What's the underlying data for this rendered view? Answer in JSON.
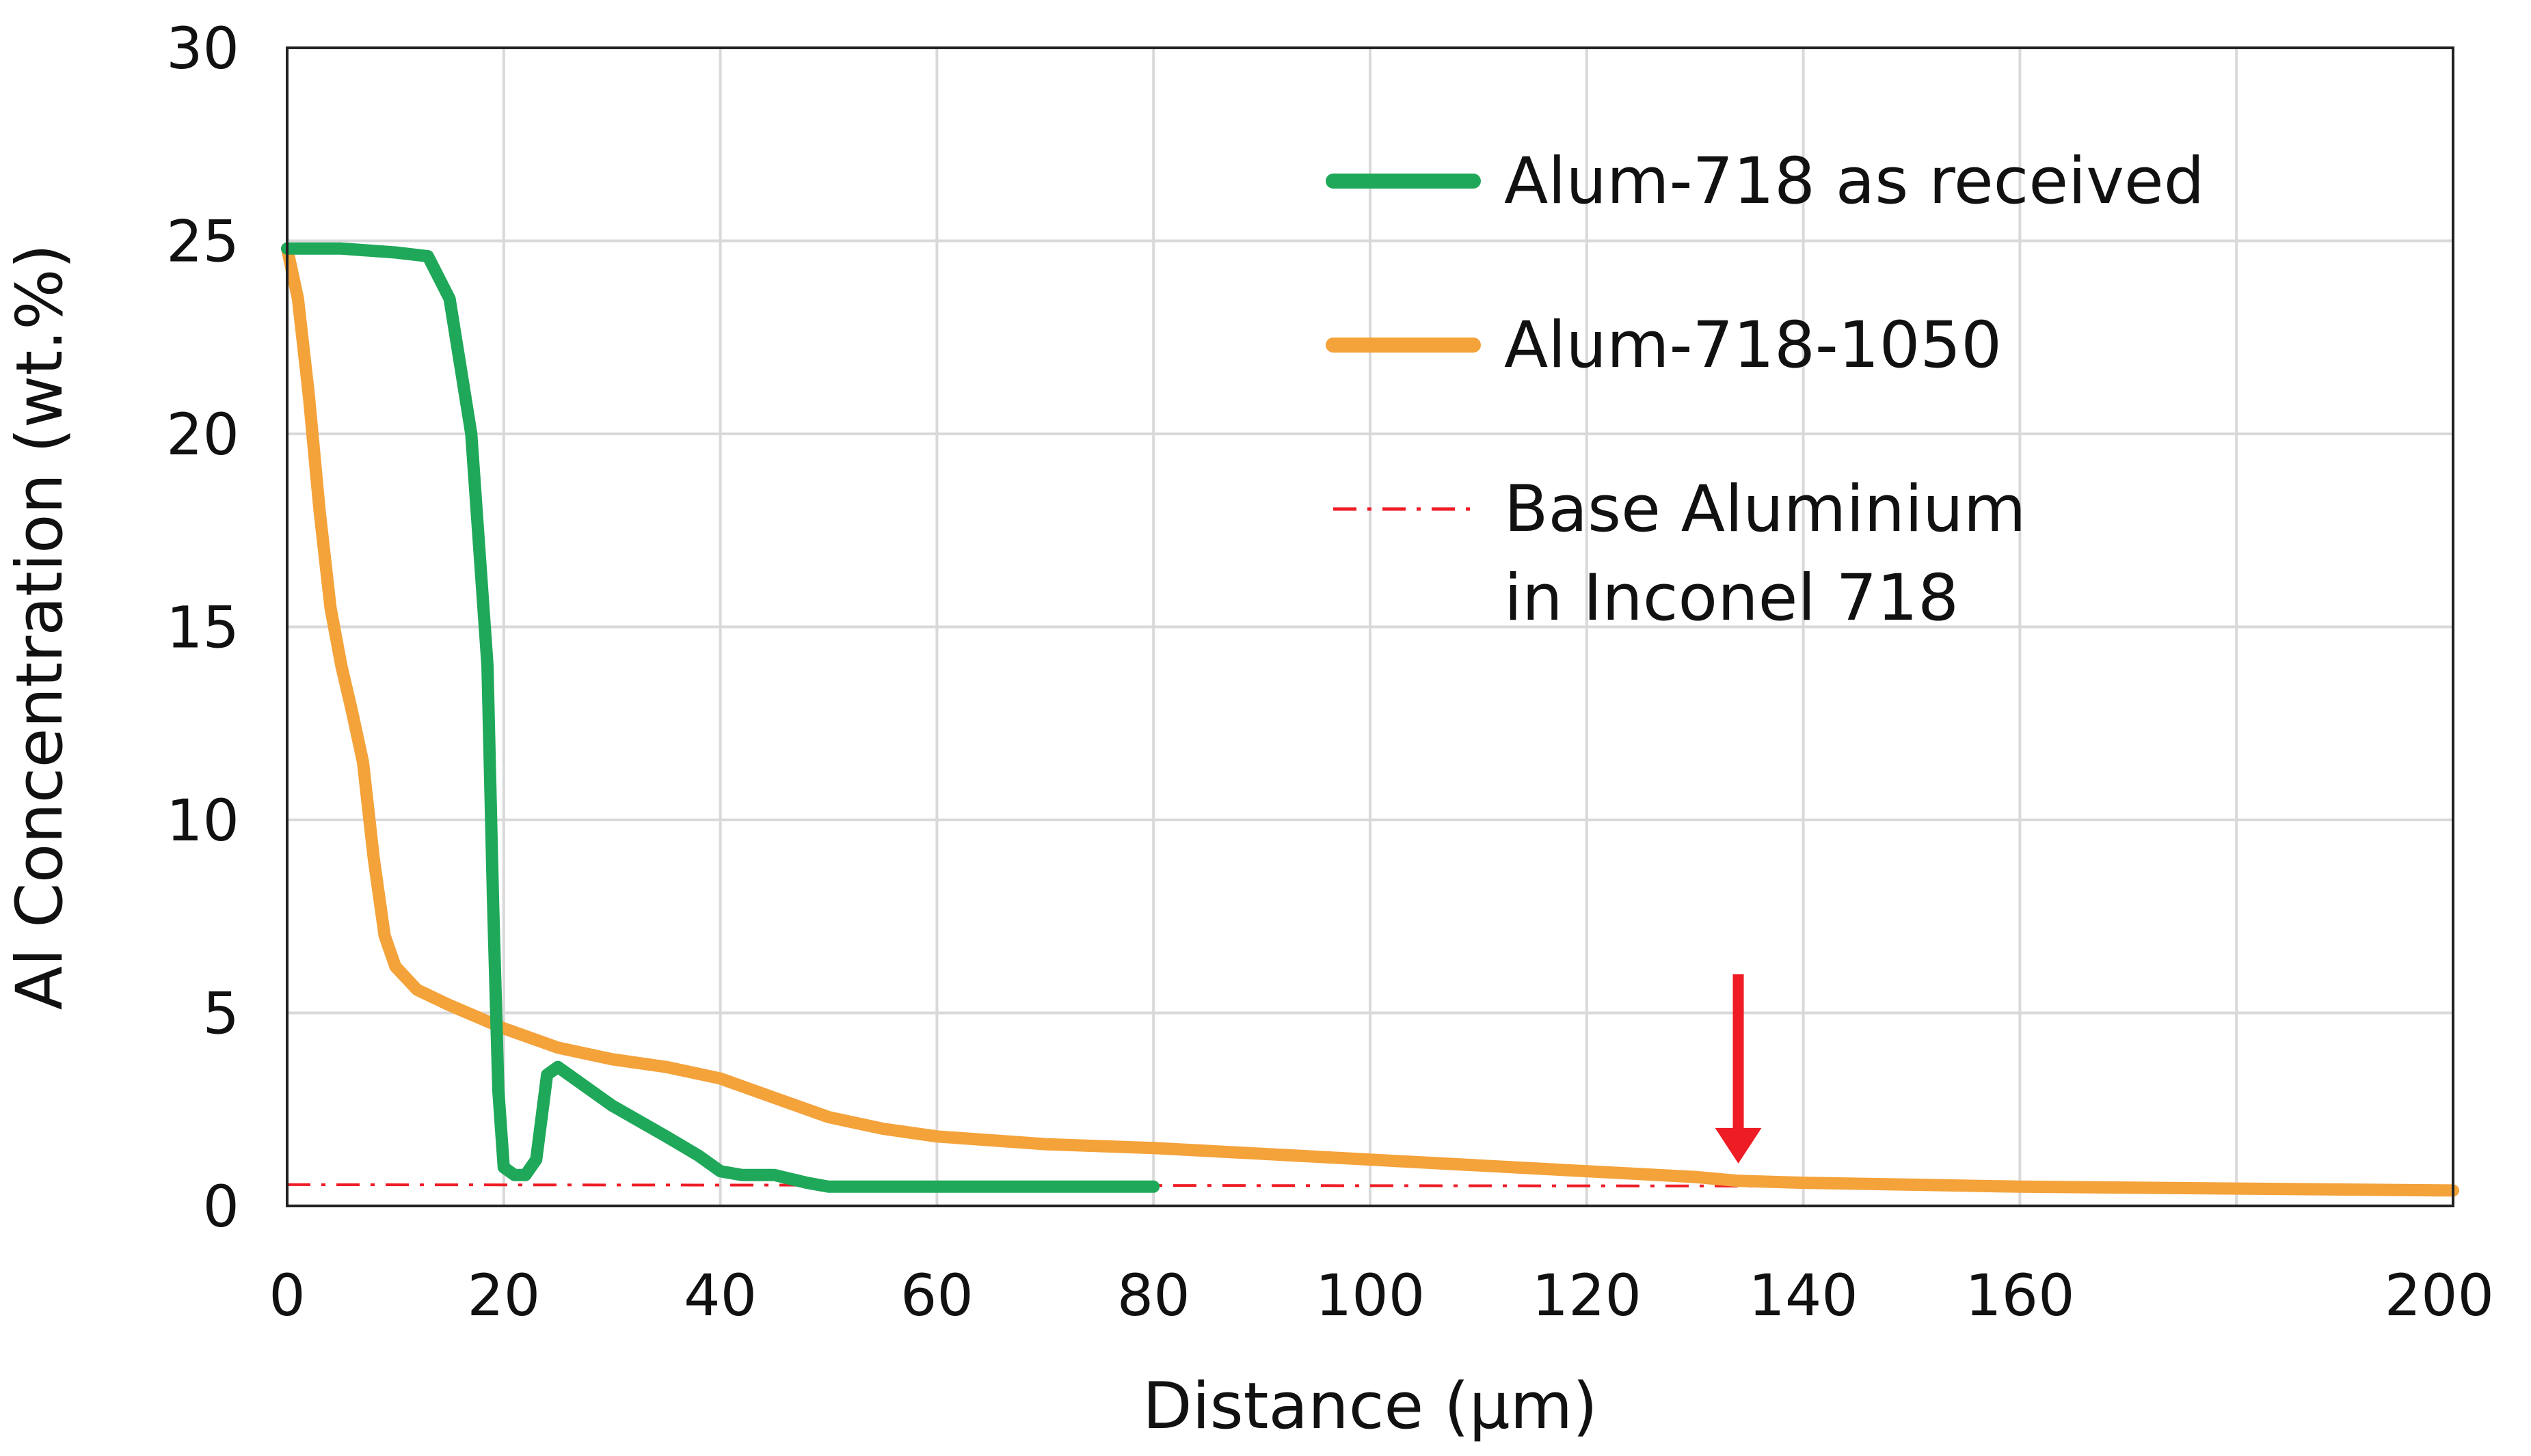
{
  "chart_data": {
    "type": "line",
    "title": "",
    "xlabel": "Distance (µm)",
    "ylabel": "Al Concentration (wt.%)",
    "xlim": [
      0,
      200
    ],
    "ylim": [
      0,
      30
    ],
    "xticks": [
      "0",
      "20",
      "40",
      "60",
      "80",
      "100",
      "120",
      "140",
      "160",
      "200"
    ],
    "yticks": [
      "0",
      "5",
      "10",
      "15",
      "20",
      "25",
      "30"
    ],
    "grid": true,
    "legend_position": "top-right",
    "series": [
      {
        "name": "Alum-718 as received",
        "color": "#1fa85a",
        "x": [
          0,
          5,
          10,
          13,
          15,
          17,
          18.5,
          19,
          19.5,
          20,
          21,
          22,
          23,
          24,
          25,
          27,
          30,
          35,
          38,
          40,
          42,
          45,
          48,
          50,
          55,
          60,
          65,
          70,
          75,
          80
        ],
        "values": [
          24.8,
          24.8,
          24.7,
          24.6,
          23.5,
          20.0,
          14.0,
          8.0,
          3.0,
          1.0,
          0.8,
          0.8,
          1.2,
          3.4,
          3.6,
          3.2,
          2.6,
          1.8,
          1.3,
          0.9,
          0.8,
          0.8,
          0.6,
          0.5,
          0.5,
          0.5,
          0.5,
          0.5,
          0.5,
          0.5
        ]
      },
      {
        "name": "Alum-718-1050",
        "color": "#f4a23a",
        "x": [
          0,
          1,
          2,
          3,
          4,
          5,
          6,
          7,
          8,
          9,
          10,
          12,
          15,
          20,
          25,
          30,
          35,
          40,
          45,
          50,
          55,
          60,
          70,
          80,
          90,
          100,
          110,
          120,
          130,
          134,
          140,
          150,
          160,
          180,
          200
        ],
        "values": [
          24.8,
          23.5,
          21.0,
          18.0,
          15.5,
          14.0,
          12.8,
          11.5,
          9.0,
          7.0,
          6.2,
          5.6,
          5.2,
          4.6,
          4.1,
          3.8,
          3.6,
          3.3,
          2.8,
          2.3,
          2.0,
          1.8,
          1.6,
          1.5,
          1.35,
          1.2,
          1.05,
          0.9,
          0.75,
          0.65,
          0.6,
          0.55,
          0.5,
          0.45,
          0.4
        ]
      },
      {
        "name": "Base Aluminium in Inconel 718",
        "name_lines": [
          "Base Aluminium",
          "in Inconel 718"
        ],
        "color": "#ee1c25",
        "style": "dashdot",
        "x": [
          0,
          200
        ],
        "values": [
          0.55,
          0.5
        ]
      }
    ],
    "annotations": [
      {
        "type": "arrow",
        "color": "#ee1c25",
        "x": 134,
        "y_from": 6.0,
        "y_to": 1.1
      }
    ]
  },
  "x_tick_values": [
    0,
    20,
    40,
    60,
    80,
    100,
    120,
    140,
    160,
    200
  ],
  "y_tick_values": [
    0,
    5,
    10,
    15,
    20,
    25,
    30
  ],
  "grid_x_values": [
    20,
    40,
    60,
    80,
    100,
    120,
    140,
    160,
    180
  ],
  "grid_y_values": [
    5,
    10,
    15,
    20,
    25
  ]
}
